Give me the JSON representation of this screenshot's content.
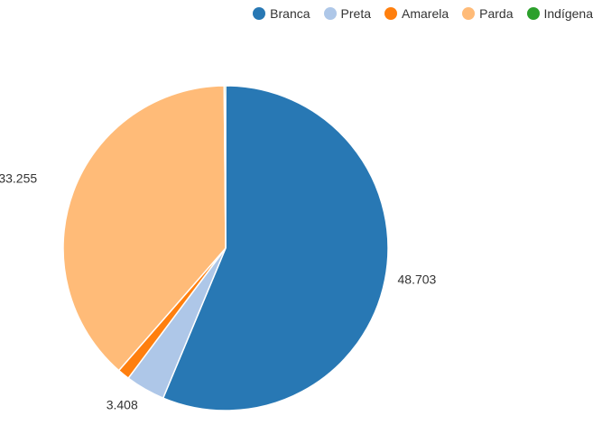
{
  "chart_data": {
    "type": "pie",
    "legend_position": "top-right",
    "categories": [
      "Branca",
      "Preta",
      "Amarela",
      "Parda",
      "Indígena"
    ],
    "values": [
      48703,
      3408,
      1034,
      33255,
      127
    ],
    "data_labels": [
      "48.703",
      "3.408",
      "",
      "33.255",
      ""
    ],
    "colors": [
      "#2878b4",
      "#aec7e8",
      "#ff7f0e",
      "#ffbb78",
      "#2ca02c"
    ],
    "start_angle_deg": 0,
    "direction": "clockwise"
  }
}
